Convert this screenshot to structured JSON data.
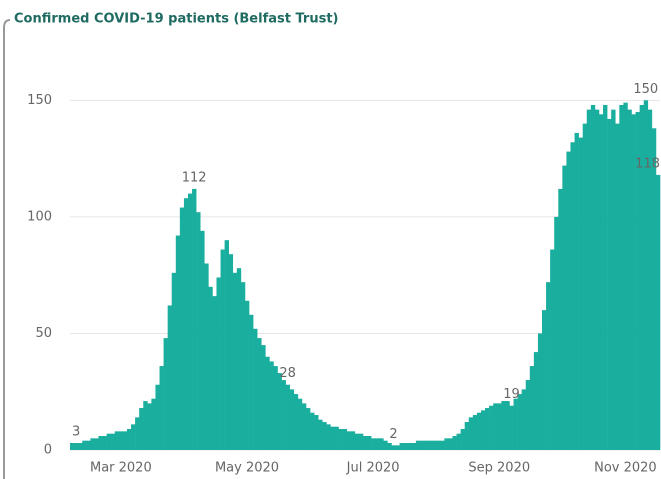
{
  "chart_data": {
    "type": "bar",
    "title": "Confirmed COVID-19 patients (Belfast Trust)",
    "categories": [
      null,
      null,
      null,
      null,
      null,
      null,
      null,
      null,
      null,
      null,
      null,
      null,
      "Mar 2020",
      null,
      null,
      null,
      null,
      null,
      null,
      null,
      null,
      null,
      null,
      null,
      null,
      null,
      null,
      null,
      null,
      null,
      null,
      null,
      null,
      null,
      null,
      null,
      null,
      null,
      null,
      null,
      null,
      null,
      null,
      "May 2020",
      null,
      null,
      null,
      null,
      null,
      null,
      null,
      null,
      null,
      null,
      null,
      null,
      null,
      null,
      null,
      null,
      null,
      null,
      null,
      null,
      null,
      null,
      null,
      null,
      null,
      null,
      null,
      null,
      null,
      null,
      "Jul 2020",
      null,
      null,
      null,
      null,
      null,
      null,
      null,
      null,
      null,
      null,
      null,
      null,
      null,
      null,
      null,
      null,
      null,
      null,
      null,
      null,
      null,
      null,
      null,
      null,
      null,
      null,
      null,
      null,
      null,
      null,
      "Sep 2020",
      null,
      null,
      null,
      null,
      null,
      null,
      null,
      null,
      null,
      null,
      null,
      null,
      null,
      null,
      null,
      null,
      null,
      null,
      null,
      null,
      null,
      null,
      null,
      null,
      null,
      null,
      null,
      null,
      null,
      null,
      "Nov 2020",
      null,
      null,
      null,
      null,
      null,
      null,
      null,
      null
    ],
    "values": [
      3,
      3,
      3,
      4,
      4,
      5,
      5,
      6,
      6,
      7,
      7,
      8,
      8,
      8,
      9,
      11,
      14,
      18,
      21,
      20,
      22,
      28,
      36,
      48,
      62,
      76,
      92,
      104,
      108,
      110,
      112,
      102,
      94,
      80,
      70,
      66,
      74,
      86,
      90,
      84,
      76,
      78,
      72,
      64,
      58,
      52,
      48,
      45,
      40,
      38,
      36,
      33,
      30,
      28,
      26,
      24,
      22,
      20,
      18,
      16,
      15,
      13,
      12,
      11,
      10,
      10,
      9,
      9,
      8,
      8,
      7,
      7,
      6,
      6,
      5,
      5,
      5,
      4,
      3,
      2,
      2,
      3,
      3,
      3,
      3,
      4,
      4,
      4,
      4,
      4,
      4,
      4,
      5,
      5,
      6,
      7,
      9,
      12,
      14,
      15,
      16,
      17,
      18,
      19,
      20,
      20,
      21,
      21,
      19,
      22,
      24,
      26,
      30,
      36,
      42,
      50,
      60,
      72,
      86,
      100,
      112,
      122,
      128,
      132,
      136,
      134,
      140,
      146,
      148,
      146,
      144,
      148,
      142,
      146,
      140,
      148,
      149,
      146,
      144,
      145,
      148,
      150,
      146,
      138,
      118
    ],
    "labeled_points": [
      0,
      30,
      53,
      79,
      108,
      141,
      144
    ],
    "color": "#1aae9f",
    "ylim": [
      0,
      160
    ],
    "yticks": [
      0,
      50,
      100,
      150
    ],
    "grid": true
  }
}
